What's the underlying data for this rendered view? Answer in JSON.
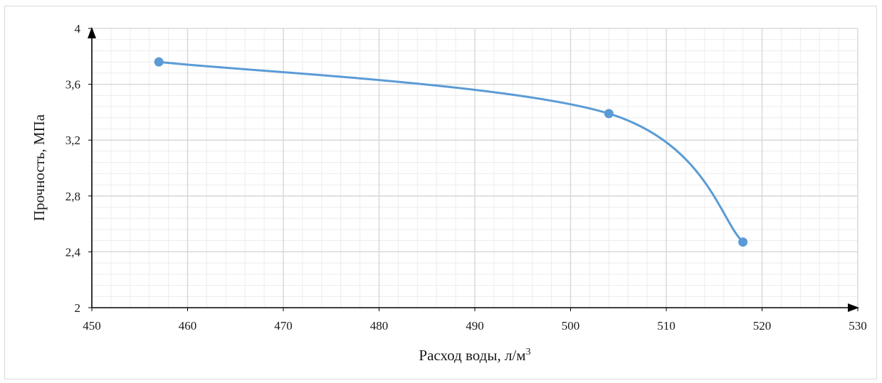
{
  "chart_data": {
    "type": "line",
    "title": "",
    "xlabel": "Расход воды, л/м",
    "xlabel_sup": "3",
    "ylabel": "Прочность, МПа",
    "xlim": [
      450,
      530
    ],
    "ylim": [
      2,
      4
    ],
    "x_major_ticks": [
      450,
      460,
      470,
      480,
      490,
      500,
      510,
      520,
      530
    ],
    "x_tick_labels": [
      "450",
      "460",
      "470",
      "480",
      "490",
      "500",
      "510",
      "520",
      "530"
    ],
    "x_minor_step": 2,
    "y_major_ticks": [
      2,
      2.4,
      2.8,
      3.2,
      3.6,
      4
    ],
    "y_tick_labels": [
      "2",
      "2,4",
      "2,8",
      "3,2",
      "3,6",
      "4"
    ],
    "y_minor_step": 0.08,
    "grid": true,
    "smooth": true,
    "series": [
      {
        "color": "#5b9bd5",
        "points": [
          {
            "x": 457,
            "y": 3.76
          },
          {
            "x": 504,
            "y": 3.39
          },
          {
            "x": 518,
            "y": 2.47
          }
        ]
      }
    ]
  }
}
